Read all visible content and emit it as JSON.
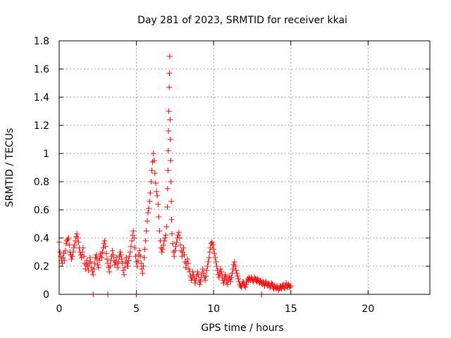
{
  "chart_data": {
    "type": "scatter",
    "title": "Day 281 of 2023, SRMTID for receiver kkai",
    "xlabel": "GPS time / hours",
    "ylabel": "SRMTID / TECUs",
    "xlim": [
      0,
      24
    ],
    "ylim": [
      0,
      1.8
    ],
    "x_ticks": [
      0,
      5,
      10,
      15,
      20
    ],
    "x_tick_labels": [
      "0",
      "5",
      "10",
      "15",
      "20"
    ],
    "y_ticks": [
      0,
      0.2,
      0.4,
      0.6,
      0.8,
      1.0,
      1.2,
      1.4,
      1.6,
      1.8
    ],
    "y_tick_labels": [
      "0",
      "0.2",
      "0.4",
      "0.6",
      "0.8",
      "1",
      "1.2",
      "1.4",
      "1.6",
      "1.8"
    ],
    "grid": true,
    "marker": "+",
    "marker_color": "#ff0000",
    "series": [
      {
        "name": "SRMTID",
        "points": [
          [
            0.0,
            0.37
          ],
          [
            0.05,
            0.3
          ],
          [
            0.1,
            0.27
          ],
          [
            0.15,
            0.24
          ],
          [
            0.2,
            0.22
          ],
          [
            0.25,
            0.26
          ],
          [
            0.3,
            0.29
          ],
          [
            0.35,
            0.24
          ],
          [
            0.4,
            0.31
          ],
          [
            0.45,
            0.36
          ],
          [
            0.5,
            0.38
          ],
          [
            0.55,
            0.39
          ],
          [
            0.6,
            0.4
          ],
          [
            0.65,
            0.35
          ],
          [
            0.7,
            0.3
          ],
          [
            0.75,
            0.28
          ],
          [
            0.8,
            0.25
          ],
          [
            0.85,
            0.27
          ],
          [
            0.9,
            0.3
          ],
          [
            0.95,
            0.33
          ],
          [
            1.0,
            0.35
          ],
          [
            1.05,
            0.38
          ],
          [
            1.1,
            0.41
          ],
          [
            1.15,
            0.43
          ],
          [
            1.2,
            0.4
          ],
          [
            1.25,
            0.37
          ],
          [
            1.3,
            0.33
          ],
          [
            1.35,
            0.3
          ],
          [
            1.4,
            0.28
          ],
          [
            1.45,
            0.26
          ],
          [
            1.5,
            0.3
          ],
          [
            1.55,
            0.33
          ],
          [
            1.6,
            0.27
          ],
          [
            1.65,
            0.22
          ],
          [
            1.7,
            0.18
          ],
          [
            1.75,
            0.21
          ],
          [
            1.8,
            0.24
          ],
          [
            1.85,
            0.2
          ],
          [
            1.9,
            0.17
          ],
          [
            1.95,
            0.22
          ],
          [
            2.0,
            0.26
          ],
          [
            2.05,
            0.23
          ],
          [
            2.1,
            0.19
          ],
          [
            2.15,
            0.16
          ],
          [
            2.2,
            0.14
          ],
          [
            2.25,
            0.18
          ],
          [
            2.3,
            0.22
          ],
          [
            2.35,
            0.26
          ],
          [
            2.4,
            0.28
          ],
          [
            2.45,
            0.25
          ],
          [
            2.5,
            0.21
          ],
          [
            2.55,
            0.19
          ],
          [
            2.6,
            0.24
          ],
          [
            2.65,
            0.27
          ],
          [
            2.7,
            0.29
          ],
          [
            2.75,
            0.26
          ],
          [
            2.8,
            0.3
          ],
          [
            2.85,
            0.33
          ],
          [
            2.9,
            0.36
          ],
          [
            2.95,
            0.38
          ],
          [
            3.0,
            0.34
          ],
          [
            3.05,
            0.29
          ],
          [
            3.1,
            0.25
          ],
          [
            3.15,
            0.22
          ],
          [
            3.2,
            0.19
          ],
          [
            3.25,
            0.16
          ],
          [
            3.3,
            0.2
          ],
          [
            3.35,
            0.24
          ],
          [
            3.4,
            0.27
          ],
          [
            3.45,
            0.31
          ],
          [
            3.5,
            0.28
          ],
          [
            3.55,
            0.24
          ],
          [
            3.6,
            0.21
          ],
          [
            3.65,
            0.23
          ],
          [
            3.7,
            0.26
          ],
          [
            3.75,
            0.22
          ],
          [
            3.8,
            0.19
          ],
          [
            3.85,
            0.23
          ],
          [
            3.9,
            0.27
          ],
          [
            3.95,
            0.3
          ],
          [
            4.0,
            0.28
          ],
          [
            4.05,
            0.25
          ],
          [
            4.1,
            0.22
          ],
          [
            4.15,
            0.17
          ],
          [
            4.2,
            0.14
          ],
          [
            4.25,
            0.19
          ],
          [
            4.3,
            0.23
          ],
          [
            4.35,
            0.26
          ],
          [
            4.4,
            0.22
          ],
          [
            4.45,
            0.2
          ],
          [
            4.5,
            0.24
          ],
          [
            4.55,
            0.27
          ],
          [
            4.6,
            0.3
          ],
          [
            4.65,
            0.34
          ],
          [
            4.7,
            0.38
          ],
          [
            4.75,
            0.42
          ],
          [
            4.8,
            0.45
          ],
          [
            4.85,
            0.4
          ],
          [
            4.9,
            0.33
          ],
          [
            4.95,
            0.27
          ],
          [
            5.0,
            0.23
          ],
          [
            5.05,
            0.2
          ],
          [
            5.1,
            0.24
          ],
          [
            5.15,
            0.28
          ],
          [
            5.2,
            0.31
          ],
          [
            5.25,
            0.27
          ],
          [
            5.3,
            0.22
          ],
          [
            5.35,
            0.18
          ],
          [
            5.4,
            0.15
          ],
          [
            5.45,
            0.2
          ],
          [
            5.5,
            0.26
          ],
          [
            5.55,
            0.32
          ],
          [
            5.6,
            0.38
          ],
          [
            5.65,
            0.45
          ],
          [
            5.7,
            0.52
          ],
          [
            5.75,
            0.58
          ],
          [
            5.8,
            0.61
          ],
          [
            5.85,
            0.66
          ],
          [
            5.9,
            0.72
          ],
          [
            5.95,
            0.8
          ],
          [
            6.0,
            0.88
          ],
          [
            6.05,
            0.94
          ],
          [
            6.1,
            1.0
          ],
          [
            6.15,
            0.95
          ],
          [
            6.2,
            0.86
          ],
          [
            6.25,
            0.79
          ],
          [
            6.3,
            0.73
          ],
          [
            6.35,
            0.7
          ],
          [
            6.4,
            0.64
          ],
          [
            6.45,
            0.55
          ],
          [
            6.5,
            0.45
          ],
          [
            6.55,
            0.38
          ],
          [
            6.6,
            0.33
          ],
          [
            6.65,
            0.3
          ],
          [
            6.7,
            0.32
          ],
          [
            6.75,
            0.35
          ],
          [
            6.8,
            0.38
          ],
          [
            6.85,
            0.4
          ],
          [
            6.9,
            0.42
          ],
          [
            6.95,
            0.48
          ],
          [
            7.0,
            0.62
          ],
          [
            7.02,
            0.75
          ],
          [
            7.04,
            0.88
          ],
          [
            7.06,
            1.02
          ],
          [
            7.08,
            1.16
          ],
          [
            7.1,
            1.3
          ],
          [
            7.12,
            1.47
          ],
          [
            7.14,
            1.57
          ],
          [
            7.16,
            1.69
          ],
          [
            7.18,
            1.24
          ],
          [
            7.2,
            1.1
          ],
          [
            7.22,
            0.95
          ],
          [
            7.24,
            0.8
          ],
          [
            7.26,
            0.66
          ],
          [
            7.28,
            0.53
          ],
          [
            7.3,
            0.43
          ],
          [
            7.35,
            0.36
          ],
          [
            7.4,
            0.3
          ],
          [
            7.45,
            0.27
          ],
          [
            7.5,
            0.31
          ],
          [
            7.55,
            0.34
          ],
          [
            7.6,
            0.37
          ],
          [
            7.65,
            0.4
          ],
          [
            7.7,
            0.42
          ],
          [
            7.75,
            0.44
          ],
          [
            7.8,
            0.4
          ],
          [
            7.85,
            0.35
          ],
          [
            7.9,
            0.31
          ],
          [
            7.95,
            0.27
          ],
          [
            8.0,
            0.3
          ],
          [
            8.05,
            0.33
          ],
          [
            8.1,
            0.28
          ],
          [
            8.15,
            0.23
          ],
          [
            8.2,
            0.19
          ],
          [
            8.25,
            0.22
          ],
          [
            8.3,
            0.25
          ],
          [
            8.35,
            0.22
          ],
          [
            8.4,
            0.18
          ],
          [
            8.45,
            0.16
          ],
          [
            8.5,
            0.13
          ],
          [
            8.55,
            0.1
          ],
          [
            8.6,
            0.12
          ],
          [
            8.65,
            0.16
          ],
          [
            8.7,
            0.14
          ],
          [
            8.75,
            0.11
          ],
          [
            8.8,
            0.08
          ],
          [
            8.85,
            0.1
          ],
          [
            8.9,
            0.13
          ],
          [
            8.95,
            0.16
          ],
          [
            9.0,
            0.14
          ],
          [
            9.05,
            0.1
          ],
          [
            9.1,
            0.07
          ],
          [
            9.15,
            0.09
          ],
          [
            9.2,
            0.12
          ],
          [
            9.25,
            0.15
          ],
          [
            9.3,
            0.18
          ],
          [
            9.35,
            0.15
          ],
          [
            9.4,
            0.12
          ],
          [
            9.45,
            0.1
          ],
          [
            9.5,
            0.13
          ],
          [
            9.55,
            0.17
          ],
          [
            9.6,
            0.2
          ],
          [
            9.65,
            0.23
          ],
          [
            9.7,
            0.26
          ],
          [
            9.75,
            0.3
          ],
          [
            9.8,
            0.33
          ],
          [
            9.85,
            0.36
          ],
          [
            9.9,
            0.37
          ],
          [
            9.95,
            0.35
          ],
          [
            10.0,
            0.32
          ],
          [
            10.05,
            0.29
          ],
          [
            10.1,
            0.26
          ],
          [
            10.15,
            0.23
          ],
          [
            10.2,
            0.2
          ],
          [
            10.25,
            0.17
          ],
          [
            10.3,
            0.14
          ],
          [
            10.35,
            0.12
          ],
          [
            10.4,
            0.15
          ],
          [
            10.45,
            0.18
          ],
          [
            10.5,
            0.16
          ],
          [
            10.55,
            0.13
          ],
          [
            10.6,
            0.1
          ],
          [
            10.65,
            0.08
          ],
          [
            10.7,
            0.11
          ],
          [
            10.75,
            0.14
          ],
          [
            10.8,
            0.12
          ],
          [
            10.85,
            0.09
          ],
          [
            10.9,
            0.07
          ],
          [
            10.95,
            0.1
          ],
          [
            11.0,
            0.13
          ],
          [
            11.05,
            0.11
          ],
          [
            11.1,
            0.09
          ],
          [
            11.15,
            0.12
          ],
          [
            11.2,
            0.15
          ],
          [
            11.25,
            0.18
          ],
          [
            11.3,
            0.21
          ],
          [
            11.35,
            0.23
          ],
          [
            11.4,
            0.2
          ],
          [
            11.45,
            0.17
          ],
          [
            11.5,
            0.15
          ],
          [
            11.55,
            0.13
          ],
          [
            11.6,
            0.11
          ],
          [
            11.65,
            0.09
          ],
          [
            11.7,
            0.07
          ],
          [
            11.75,
            0.06
          ],
          [
            11.8,
            0.05
          ],
          [
            11.85,
            0.07
          ],
          [
            11.9,
            0.09
          ],
          [
            11.95,
            0.08
          ],
          [
            12.0,
            0.06
          ],
          [
            12.05,
            0.05
          ],
          [
            12.1,
            0.07
          ],
          [
            12.15,
            0.09
          ],
          [
            12.2,
            0.11
          ],
          [
            12.25,
            0.1
          ],
          [
            12.3,
            0.12
          ],
          [
            12.35,
            0.11
          ],
          [
            12.4,
            0.1
          ],
          [
            12.45,
            0.12
          ],
          [
            12.5,
            0.11
          ],
          [
            12.55,
            0.09
          ],
          [
            12.6,
            0.1
          ],
          [
            12.65,
            0.12
          ],
          [
            12.7,
            0.11
          ],
          [
            12.75,
            0.1
          ],
          [
            12.8,
            0.09
          ],
          [
            12.85,
            0.11
          ],
          [
            12.9,
            0.1
          ],
          [
            12.95,
            0.08
          ],
          [
            13.0,
            0.09
          ],
          [
            13.05,
            0.1
          ],
          [
            13.1,
            0.08
          ],
          [
            13.15,
            0.07
          ],
          [
            13.2,
            0.09
          ],
          [
            13.25,
            0.08
          ],
          [
            13.3,
            0.06
          ],
          [
            13.35,
            0.08
          ],
          [
            13.4,
            0.09
          ],
          [
            13.45,
            0.07
          ],
          [
            13.5,
            0.06
          ],
          [
            13.55,
            0.08
          ],
          [
            13.6,
            0.07
          ],
          [
            13.65,
            0.05
          ],
          [
            13.7,
            0.06
          ],
          [
            13.75,
            0.08
          ],
          [
            13.8,
            0.07
          ],
          [
            13.85,
            0.05
          ],
          [
            13.9,
            0.04
          ],
          [
            13.95,
            0.06
          ],
          [
            14.0,
            0.05
          ],
          [
            14.05,
            0.04
          ],
          [
            14.1,
            0.06
          ],
          [
            14.15,
            0.05
          ],
          [
            14.2,
            0.03
          ],
          [
            14.25,
            0.04
          ],
          [
            14.3,
            0.06
          ],
          [
            14.35,
            0.05
          ],
          [
            14.4,
            0.04
          ],
          [
            14.45,
            0.06
          ],
          [
            14.5,
            0.07
          ],
          [
            14.55,
            0.05
          ],
          [
            14.6,
            0.04
          ],
          [
            14.65,
            0.06
          ],
          [
            14.7,
            0.08
          ],
          [
            14.75,
            0.06
          ],
          [
            14.8,
            0.05
          ],
          [
            14.85,
            0.07
          ],
          [
            14.9,
            0.06
          ],
          [
            14.95,
            0.05
          ],
          [
            15.0,
            0.06
          ],
          [
            2.2,
            0.0
          ],
          [
            3.15,
            0.0
          ],
          [
            5.0,
            0.0
          ],
          [
            13.1,
            0.0
          ]
        ]
      }
    ]
  }
}
